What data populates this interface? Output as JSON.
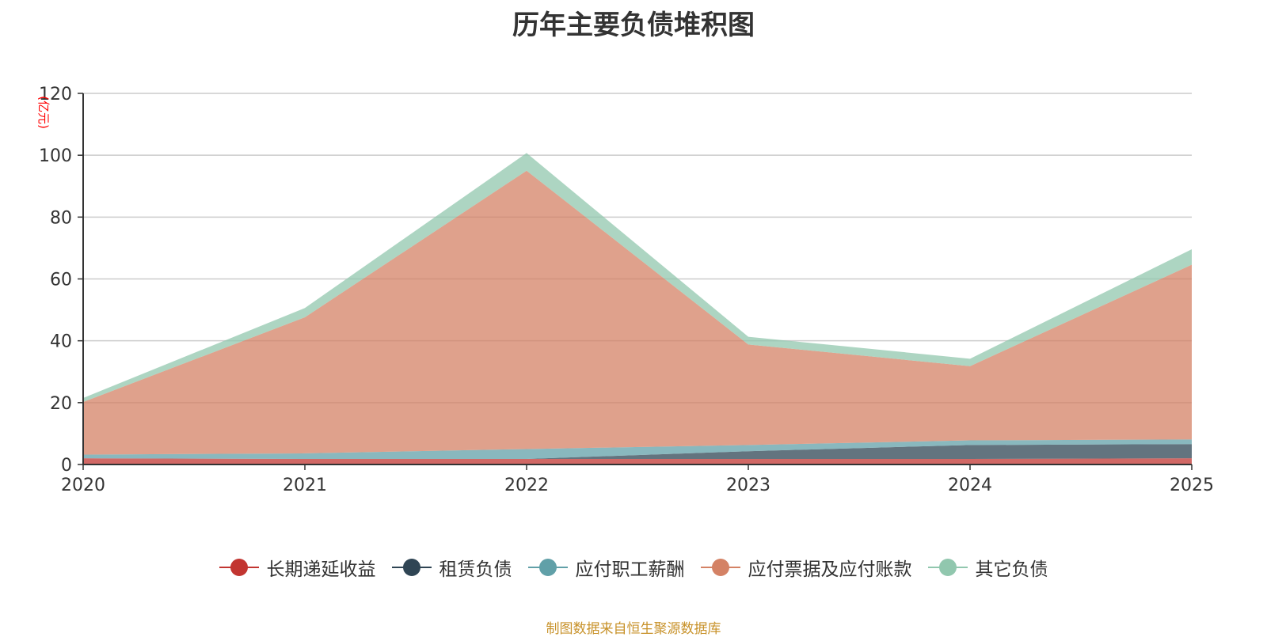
{
  "chart_data": {
    "type": "area",
    "stacked": true,
    "title": "历年主要负债堆积图",
    "ylabel": "(亿元)",
    "xlabel": "",
    "ylim": [
      0,
      120
    ],
    "yticks": [
      0,
      20,
      40,
      60,
      80,
      100,
      120
    ],
    "categories": [
      "2020",
      "2021",
      "2022",
      "2023",
      "2024",
      "2025"
    ],
    "series": [
      {
        "name": "长期递延收益",
        "color": "#c23531",
        "values": [
          2.0,
          1.8,
          1.8,
          1.8,
          1.8,
          2.0
        ]
      },
      {
        "name": "租赁负债",
        "color": "#2f4554",
        "values": [
          0,
          0,
          0,
          2.5,
          4.5,
          4.6
        ]
      },
      {
        "name": "应付职工薪酬",
        "color": "#61a0a8",
        "values": [
          1.2,
          1.8,
          3.2,
          2.0,
          1.5,
          1.5
        ]
      },
      {
        "name": "应付票据及应付账款",
        "color": "#d48265",
        "values": [
          17.0,
          44.0,
          90.0,
          32.5,
          24.0,
          56.5
        ]
      },
      {
        "name": "其它负债",
        "color": "#91c7ae",
        "values": [
          1.3,
          3.0,
          5.7,
          2.5,
          2.4,
          5.0
        ]
      }
    ],
    "legend_position": "bottom",
    "grid": true,
    "source_note": "制图数据来自恒生聚源数据库"
  }
}
